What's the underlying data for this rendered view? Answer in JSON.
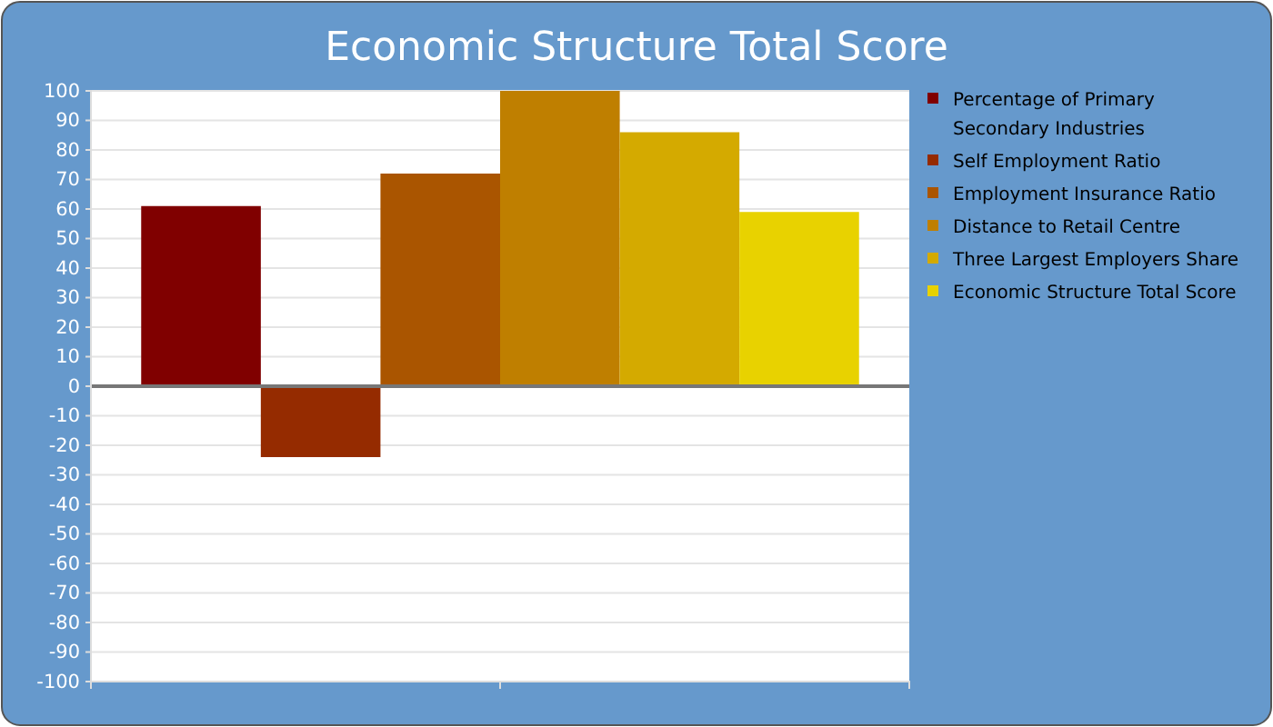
{
  "chart_data": {
    "type": "bar",
    "title": "Economic Structure Total Score",
    "categories": [
      null
    ],
    "series": [
      {
        "name": "Percentage of Primary Secondary Industries",
        "color": "#800000",
        "values": [
          61
        ]
      },
      {
        "name": "Self Employment Ratio",
        "color": "#952b00",
        "values": [
          -24
        ]
      },
      {
        "name": "Employment Insurance Ratio",
        "color": "#aa5500",
        "values": [
          72
        ]
      },
      {
        "name": "Distance to Retail Centre",
        "color": "#bf7f00",
        "values": [
          100
        ]
      },
      {
        "name": "Three Largest Employers Share",
        "color": "#d4aa00",
        "values": [
          86
        ]
      },
      {
        "name": "Economic Structure Total Score",
        "color": "#e8d200",
        "values": [
          59
        ]
      }
    ],
    "ylim": [
      -100,
      100
    ],
    "yticks": [
      -100,
      -90,
      -80,
      -70,
      -60,
      -50,
      -40,
      -30,
      -20,
      -10,
      0,
      10,
      20,
      30,
      40,
      50,
      60,
      70,
      80,
      90,
      100
    ],
    "grid": "y",
    "legend": "right"
  }
}
